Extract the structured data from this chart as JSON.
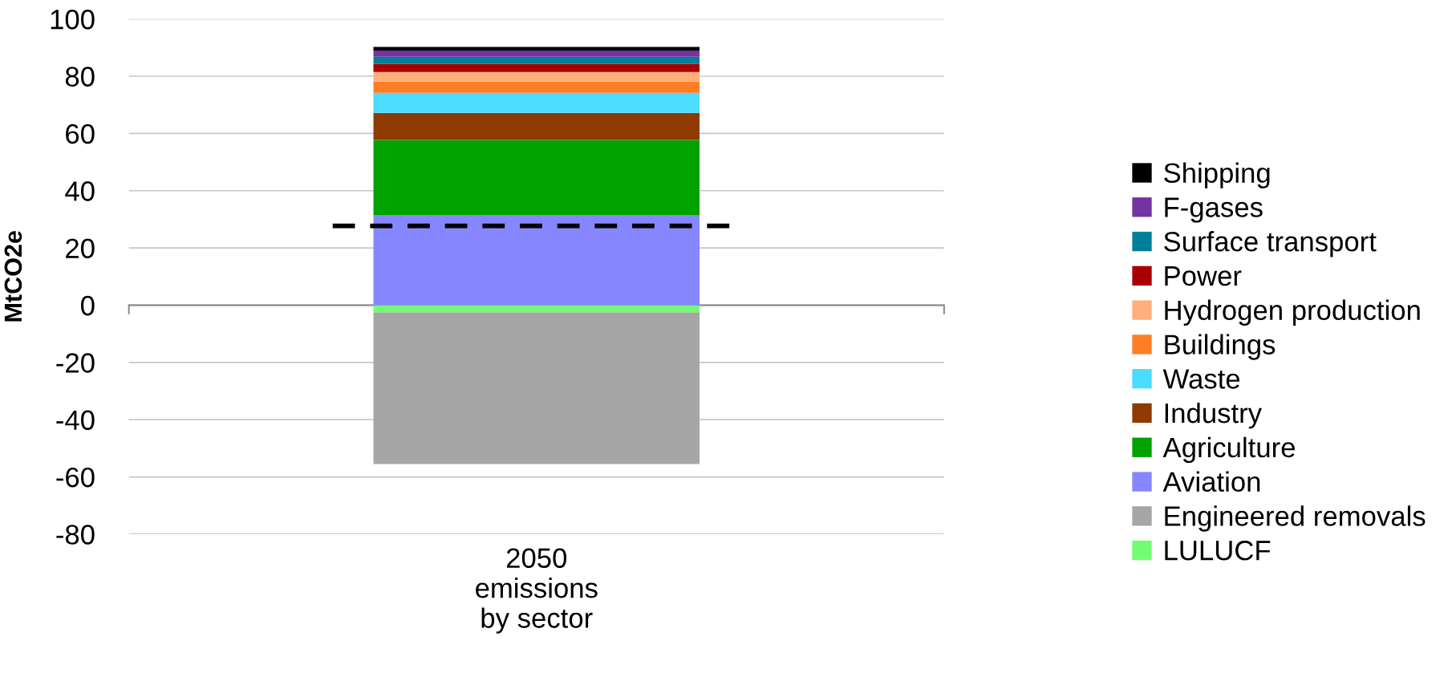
{
  "chart_data": {
    "type": "bar",
    "stacked": true,
    "ylabel": "MtCO2e",
    "categories": [
      "2050\nemissions\nby sector"
    ],
    "series": [
      {
        "name": "LULUCF",
        "color": "#72fc72",
        "values": [
          -2.5
        ]
      },
      {
        "name": "Engineered removals",
        "color": "#a6a6a6",
        "values": [
          -53
        ]
      },
      {
        "name": "Aviation",
        "color": "#8687ff",
        "values": [
          31.4
        ]
      },
      {
        "name": "Agriculture",
        "color": "#00a200",
        "values": [
          26.3
        ]
      },
      {
        "name": "Industry",
        "color": "#8f3a00",
        "values": [
          9.5
        ]
      },
      {
        "name": "Waste",
        "color": "#4cdcff",
        "values": [
          7.0
        ]
      },
      {
        "name": "Buildings",
        "color": "#ff7d25",
        "values": [
          3.9
        ]
      },
      {
        "name": "Hydrogen production",
        "color": "#ffaf7b",
        "values": [
          3.4
        ]
      },
      {
        "name": "Power",
        "color": "#a80000",
        "values": [
          2.8
        ]
      },
      {
        "name": "Surface transport",
        "color": "#007f98",
        "values": [
          2.5
        ]
      },
      {
        "name": "F-gases",
        "color": "#7433a0",
        "values": [
          2.2
        ]
      },
      {
        "name": "Shipping",
        "color": "#000000",
        "values": [
          1.2
        ]
      }
    ],
    "ylim": [
      -80,
      100
    ],
    "yticks": [
      -80,
      -60,
      -40,
      -20,
      0,
      20,
      40,
      60,
      80,
      100
    ],
    "grid": "y",
    "legend": "right",
    "ref_lines": [
      {
        "axis": "y",
        "value": 27.7,
        "color": "#000000",
        "line_style": "dashed"
      }
    ]
  }
}
